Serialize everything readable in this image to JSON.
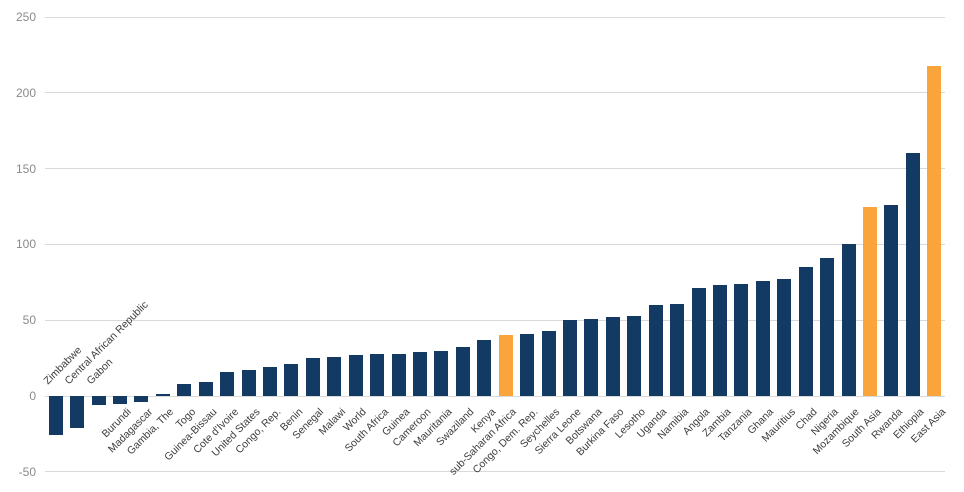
{
  "chart_data": {
    "type": "bar",
    "title": "",
    "xlabel": "",
    "ylabel": "",
    "categories": [
      "Zimbabwe",
      "Central African Republic",
      "Gabon",
      "Burundi",
      "Madagascar",
      "Gambia, The",
      "Togo",
      "Guinea-Bissau",
      "Cote d'Ivoire",
      "United States",
      "Congo, Rep.",
      "Benin",
      "Senegal",
      "Malawi",
      "World",
      "South Africa",
      "Guinea",
      "Cameroon",
      "Mauritania",
      "Swaziland",
      "Kenya",
      "sub-Saharan Africa",
      "Congo, Dem. Rep.",
      "Seychelles",
      "Sierra Leone",
      "Botswana",
      "Burkina Faso",
      "Lesotho",
      "Uganda",
      "Namibia",
      "Angola",
      "Zambia",
      "Tanzania",
      "Ghana",
      "Mauritius",
      "Chad",
      "Nigeria",
      "Mozambique",
      "South Asia",
      "Rwanda",
      "Ethiopia",
      "East Asia"
    ],
    "values": [
      -26,
      -21,
      -6,
      -5,
      -4,
      1,
      8,
      9,
      16,
      17,
      19,
      21,
      25,
      26,
      27,
      28,
      28,
      29,
      30,
      32,
      37,
      40,
      41,
      43,
      50,
      51,
      52,
      53,
      60,
      61,
      71,
      73,
      74,
      76,
      77,
      85,
      91,
      100,
      125,
      126,
      160,
      218
    ],
    "highlighted_categories": [
      "sub-Saharan Africa",
      "South Asia",
      "East Asia"
    ],
    "labels_above_axis": [
      "Zimbabwe",
      "Central African Republic",
      "Gabon"
    ],
    "y_ticks": [
      250,
      200,
      150,
      100,
      50,
      0,
      -50
    ],
    "ylim": [
      -50,
      250
    ],
    "grid": true,
    "legend": "none",
    "bar_orientation": "vertical",
    "category_label_rotation_deg": 45
  },
  "colors": {
    "default_bar": "#123a63",
    "highlight_bar": "#f9a53c",
    "gridline": "#d9d9d9",
    "tick_text": "#8a8a8a",
    "label_text": "#3d3d3d",
    "background": "#ffffff"
  }
}
